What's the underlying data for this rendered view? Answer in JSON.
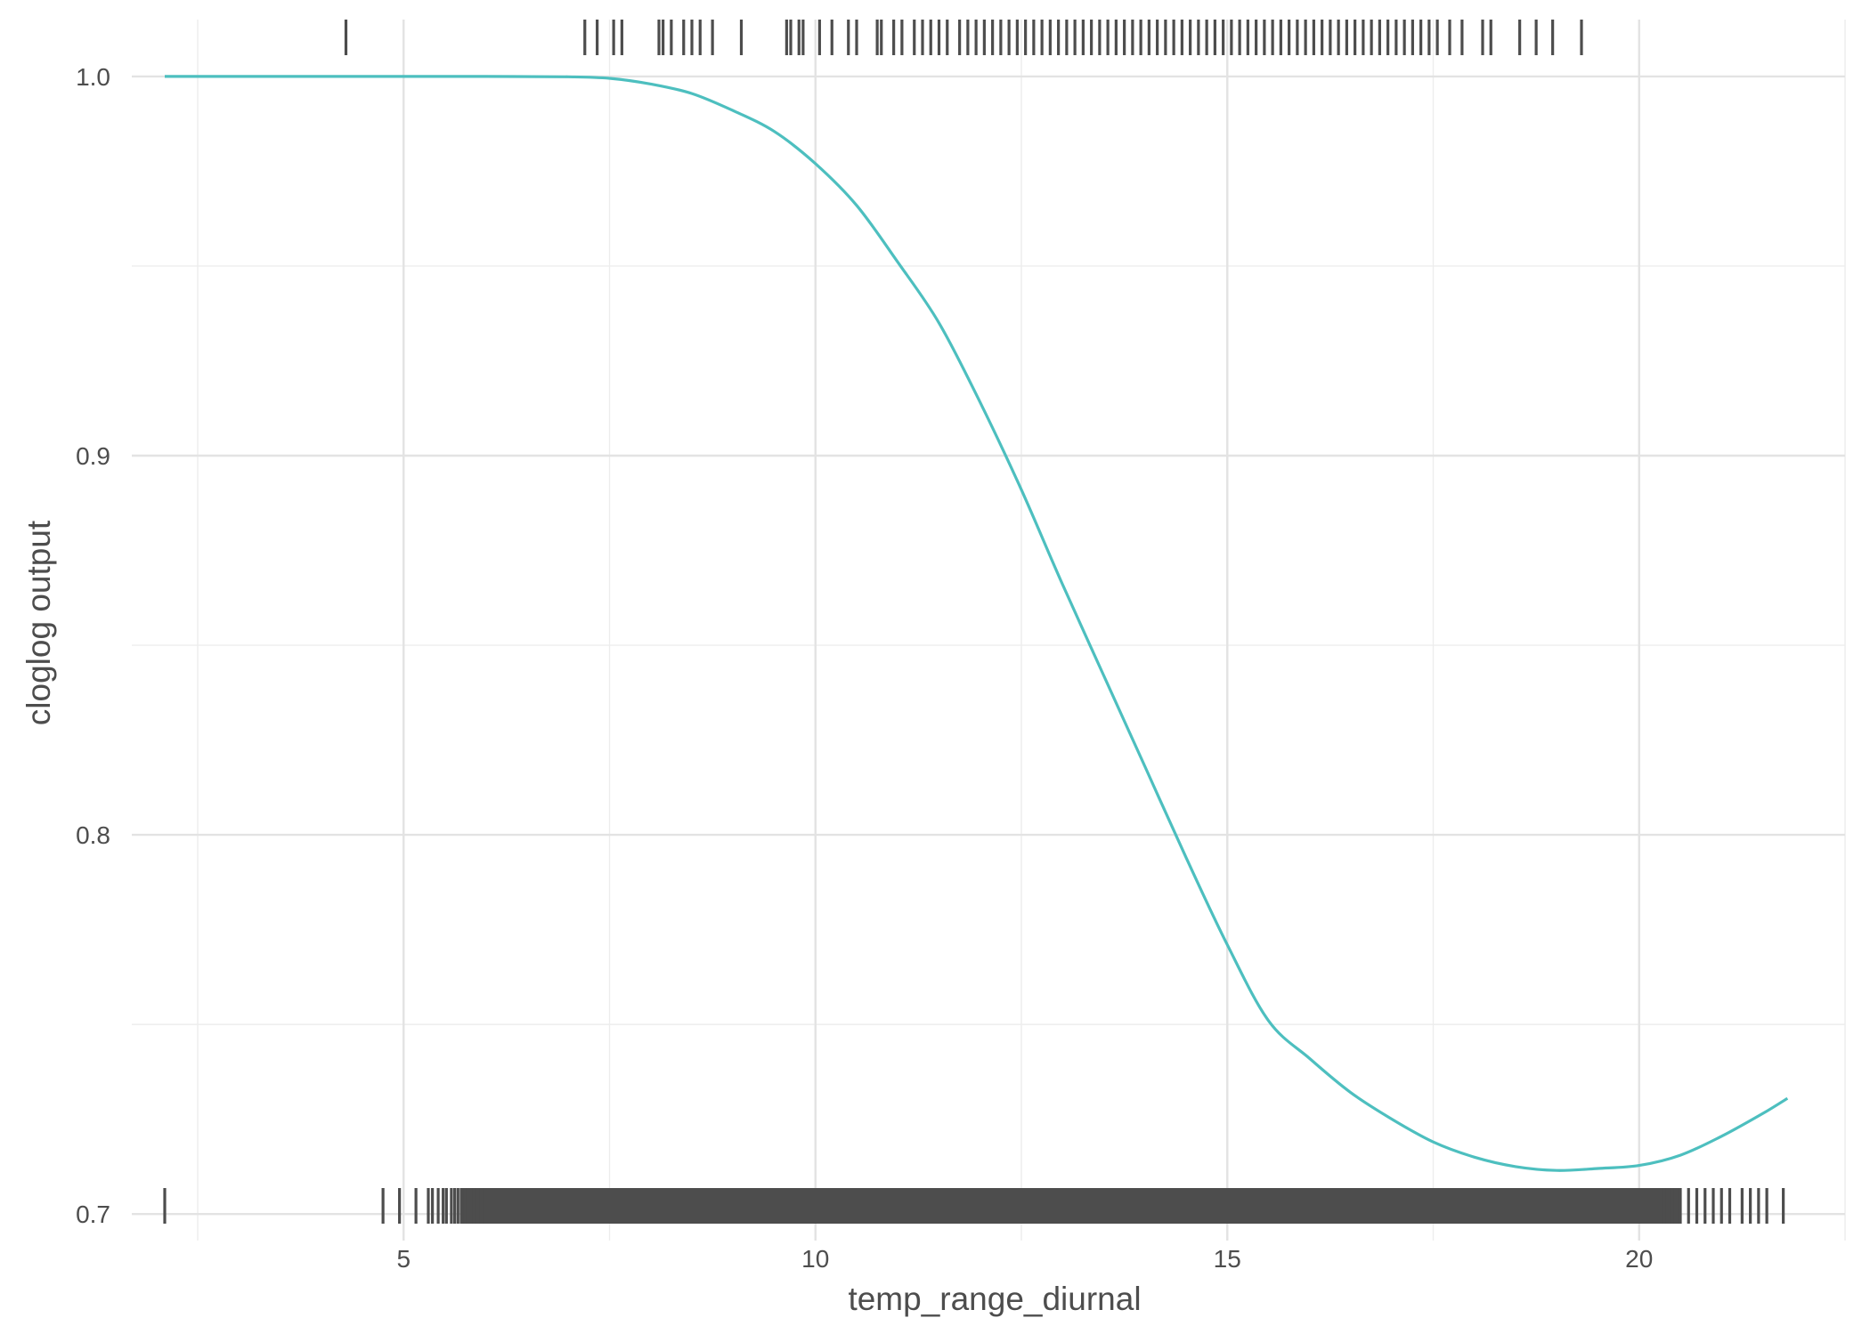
{
  "chart_data": {
    "type": "line",
    "title": "",
    "xlabel": "temp_range_diurnal",
    "ylabel": "cloglog output",
    "xlim": [
      1.7,
      22.5
    ],
    "ylim": [
      0.693,
      1.015
    ],
    "x_ticks": [
      5,
      10,
      15,
      20
    ],
    "x_tick_labels": [
      "5",
      "10",
      "15",
      "20"
    ],
    "y_ticks": [
      0.7,
      0.8,
      0.9,
      1.0
    ],
    "y_tick_labels": [
      "0.7",
      "0.8",
      "0.9",
      "1.0"
    ],
    "grid": true,
    "line_color": "#4dbfbf",
    "rug_color": "#4d4d4d",
    "series": [
      {
        "x": [
          2.1,
          3,
          4,
          5,
          6,
          7,
          7.5,
          8,
          8.5,
          9,
          9.5,
          10,
          10.5,
          11,
          11.5,
          12,
          12.5,
          13,
          13.5,
          14,
          14.5,
          15,
          15.5,
          16,
          16.5,
          17,
          17.5,
          18,
          18.5,
          19,
          19.5,
          20,
          20.5,
          21,
          21.5,
          21.8
        ],
        "y": [
          1.0,
          1.0,
          1.0,
          1.0,
          1.0,
          0.9999,
          0.9995,
          0.998,
          0.9955,
          0.991,
          0.9855,
          0.977,
          0.966,
          0.951,
          0.935,
          0.914,
          0.891,
          0.866,
          0.842,
          0.818,
          0.794,
          0.771,
          0.751,
          0.741,
          0.732,
          0.725,
          0.719,
          0.715,
          0.7125,
          0.7115,
          0.712,
          0.7128,
          0.7155,
          0.7205,
          0.7265,
          0.7305
        ]
      }
    ],
    "rug_top_x": [
      4.3,
      7.2,
      7.35,
      7.55,
      7.65,
      8.1,
      8.15,
      8.25,
      8.4,
      8.5,
      8.6,
      8.75,
      9.1,
      9.65,
      9.7,
      9.8,
      9.85,
      10.05,
      10.2,
      10.4,
      10.5,
      10.75,
      10.8,
      10.95,
      11.05,
      11.2,
      11.3,
      11.4,
      11.5,
      11.6,
      11.75,
      11.85,
      11.95,
      12.05,
      12.15,
      12.25,
      12.35,
      12.45,
      12.55,
      12.65,
      12.75,
      12.85,
      12.95,
      13.05,
      13.15,
      13.25,
      13.35,
      13.45,
      13.55,
      13.65,
      13.75,
      13.85,
      13.95,
      14.05,
      14.15,
      14.25,
      14.35,
      14.45,
      14.55,
      14.65,
      14.75,
      14.85,
      14.95,
      15.05,
      15.15,
      15.25,
      15.35,
      15.45,
      15.55,
      15.65,
      15.75,
      15.85,
      15.95,
      16.05,
      16.15,
      16.25,
      16.35,
      16.45,
      16.55,
      16.65,
      16.75,
      16.85,
      16.95,
      17.05,
      17.15,
      17.25,
      17.35,
      17.45,
      17.55,
      17.7,
      17.85,
      18.1,
      18.2,
      18.55,
      18.75,
      18.95,
      19.3
    ],
    "rug_bottom_x": [
      2.1,
      4.75,
      4.95,
      5.15,
      5.3,
      5.35,
      5.42,
      5.48,
      5.52,
      5.58,
      5.62,
      5.66,
      5.7,
      5.74,
      5.78,
      5.82,
      5.86,
      5.9,
      5.94,
      5.98,
      20.3,
      20.4,
      20.5,
      20.6,
      20.7,
      20.8,
      20.9,
      21.0,
      21.1,
      21.25,
      21.35,
      21.45,
      21.55,
      21.75
    ],
    "rug_bottom_dense_range": [
      5.7,
      20.5
    ]
  }
}
